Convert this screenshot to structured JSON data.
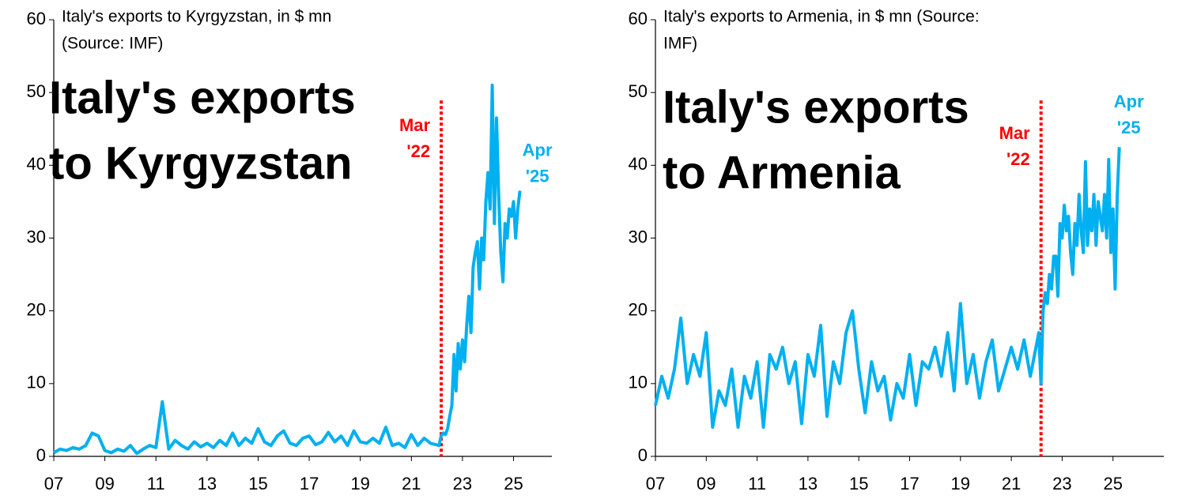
{
  "chart_data": [
    {
      "type": "line",
      "title": "Italy's exports to Kyrgyzstan, in $ mn",
      "subtitle": "(Source: IMF)",
      "annotation_big": [
        "Italy's exports",
        "to Kyrgyzstan"
      ],
      "vline": {
        "x": 2022.17,
        "color": "#ff0000",
        "label": [
          "Mar",
          "'22"
        ]
      },
      "end_label": [
        "Apr",
        "'25"
      ],
      "xlim": [
        2007,
        2026.5
      ],
      "ylim": [
        0,
        60
      ],
      "xticks": [
        {
          "value": 2007,
          "label": "07"
        },
        {
          "value": 2009,
          "label": "09"
        },
        {
          "value": 2011,
          "label": "11"
        },
        {
          "value": 2013,
          "label": "13"
        },
        {
          "value": 2015,
          "label": "15"
        },
        {
          "value": 2017,
          "label": "17"
        },
        {
          "value": 2019,
          "label": "19"
        },
        {
          "value": 2021,
          "label": "21"
        },
        {
          "value": 2023,
          "label": "23"
        },
        {
          "value": 2025,
          "label": "25"
        }
      ],
      "yticks": [
        0,
        10,
        20,
        30,
        40,
        50,
        60
      ],
      "series": [
        {
          "color": "#00b0f0",
          "x": [
            2007,
            2007.25,
            2007.5,
            2007.75,
            2008,
            2008.25,
            2008.5,
            2008.75,
            2009,
            2009.25,
            2009.5,
            2009.75,
            2010,
            2010.25,
            2010.5,
            2010.75,
            2011,
            2011.25,
            2011.5,
            2011.75,
            2012,
            2012.25,
            2012.5,
            2012.75,
            2013,
            2013.25,
            2013.5,
            2013.75,
            2014,
            2014.25,
            2014.5,
            2014.75,
            2015,
            2015.25,
            2015.5,
            2015.75,
            2016,
            2016.25,
            2016.5,
            2016.75,
            2017,
            2017.25,
            2017.5,
            2017.75,
            2018,
            2018.25,
            2018.5,
            2018.75,
            2019,
            2019.25,
            2019.5,
            2019.75,
            2020,
            2020.25,
            2020.5,
            2020.75,
            2021,
            2021.25,
            2021.5,
            2021.75,
            2022.083,
            2022.167,
            2022.25,
            2022.333,
            2022.417,
            2022.5,
            2022.583,
            2022.667,
            2022.75,
            2022.833,
            2022.917,
            2023,
            2023.083,
            2023.167,
            2023.25,
            2023.333,
            2023.417,
            2023.5,
            2023.583,
            2023.667,
            2023.75,
            2023.833,
            2023.917,
            2024,
            2024.083,
            2024.167,
            2024.25,
            2024.333,
            2024.417,
            2024.5,
            2024.583,
            2024.667,
            2024.75,
            2024.833,
            2024.917,
            2025,
            2025.083,
            2025.167,
            2025.25
          ],
          "values": [
            0.5,
            1.0,
            0.8,
            1.2,
            1.0,
            1.5,
            3.2,
            2.8,
            0.8,
            0.5,
            1.0,
            0.7,
            1.5,
            0.4,
            1.0,
            1.5,
            1.2,
            7.5,
            1.0,
            2.2,
            1.5,
            1.0,
            2.0,
            1.3,
            1.8,
            1.2,
            2.2,
            1.5,
            3.2,
            1.5,
            2.5,
            1.8,
            3.8,
            2.0,
            1.5,
            2.8,
            3.5,
            1.8,
            1.5,
            2.5,
            2.8,
            1.6,
            2.0,
            3.3,
            2.0,
            2.8,
            1.5,
            3.5,
            2.0,
            1.8,
            2.5,
            1.8,
            4.0,
            1.5,
            1.8,
            1.2,
            3.0,
            1.5,
            2.5,
            1.8,
            1.5,
            2.8,
            3.2,
            3.0,
            3.8,
            5.5,
            7.0,
            14,
            9,
            15.5,
            12,
            16,
            13,
            18,
            22,
            17,
            26,
            28,
            29.5,
            23,
            30,
            27,
            35,
            39,
            34,
            51,
            32,
            46.5,
            36,
            28,
            24,
            32,
            30,
            34,
            33,
            35,
            30,
            34,
            36.5
          ]
        }
      ]
    },
    {
      "type": "line",
      "title": "Italy's exports to Armenia, in $ mn (Source:",
      "subtitle": "IMF)",
      "annotation_big": [
        "Italy's exports",
        "to Armenia"
      ],
      "vline": {
        "x": 2022.17,
        "color": "#ff0000",
        "label": [
          "Mar",
          "'22"
        ]
      },
      "end_label": [
        "Apr",
        "'25"
      ],
      "xlim": [
        2007,
        2027
      ],
      "ylim": [
        0,
        60
      ],
      "xticks": [
        {
          "value": 2007,
          "label": "07"
        },
        {
          "value": 2009,
          "label": "09"
        },
        {
          "value": 2011,
          "label": "11"
        },
        {
          "value": 2013,
          "label": "13"
        },
        {
          "value": 2015,
          "label": "15"
        },
        {
          "value": 2017,
          "label": "17"
        },
        {
          "value": 2019,
          "label": "19"
        },
        {
          "value": 2021,
          "label": "21"
        },
        {
          "value": 2023,
          "label": "23"
        },
        {
          "value": 2025,
          "label": "25"
        }
      ],
      "yticks": [
        0,
        10,
        20,
        30,
        40,
        50,
        60
      ],
      "series": [
        {
          "color": "#00b0f0",
          "x": [
            2007,
            2007.25,
            2007.5,
            2007.75,
            2008,
            2008.25,
            2008.5,
            2008.75,
            2009,
            2009.25,
            2009.5,
            2009.75,
            2010,
            2010.25,
            2010.5,
            2010.75,
            2011,
            2011.25,
            2011.5,
            2011.75,
            2012,
            2012.25,
            2012.5,
            2012.75,
            2013,
            2013.25,
            2013.5,
            2013.75,
            2014,
            2014.25,
            2014.5,
            2014.75,
            2015,
            2015.25,
            2015.5,
            2015.75,
            2016,
            2016.25,
            2016.5,
            2016.75,
            2017,
            2017.25,
            2017.5,
            2017.75,
            2018,
            2018.25,
            2018.5,
            2018.75,
            2019,
            2019.25,
            2019.5,
            2019.75,
            2020,
            2020.25,
            2020.5,
            2020.75,
            2021,
            2021.25,
            2021.5,
            2021.75,
            2022.083,
            2022.167,
            2022.25,
            2022.333,
            2022.417,
            2022.5,
            2022.583,
            2022.667,
            2022.75,
            2022.833,
            2022.917,
            2023,
            2023.083,
            2023.167,
            2023.25,
            2023.333,
            2023.417,
            2023.5,
            2023.583,
            2023.667,
            2023.75,
            2023.833,
            2023.917,
            2024,
            2024.083,
            2024.167,
            2024.25,
            2024.333,
            2024.417,
            2024.5,
            2024.583,
            2024.667,
            2024.75,
            2024.833,
            2024.917,
            2025,
            2025.083,
            2025.167,
            2025.25
          ],
          "values": [
            7,
            11,
            8,
            12,
            19,
            10,
            14,
            11,
            17,
            4,
            9,
            7,
            12,
            4,
            11,
            8,
            13,
            4,
            14,
            12,
            15,
            10,
            13,
            4.5,
            14,
            11,
            18,
            5.5,
            13,
            10,
            17,
            20,
            12,
            6,
            13,
            9,
            11,
            5,
            10,
            8,
            14,
            7,
            13,
            12,
            15,
            11,
            17,
            9,
            21,
            10,
            14,
            8,
            13,
            16,
            9,
            12,
            15,
            12,
            16,
            11,
            17,
            10,
            20,
            22.5,
            21,
            25,
            23,
            27.5,
            27.5,
            22,
            32,
            30,
            34.5,
            31,
            33,
            28,
            25,
            32,
            29,
            36,
            31,
            28,
            40.5,
            29,
            34,
            31,
            36,
            29,
            35,
            33,
            31,
            36,
            30,
            40.8,
            28,
            34,
            23,
            35.8,
            42.5
          ]
        }
      ]
    }
  ]
}
